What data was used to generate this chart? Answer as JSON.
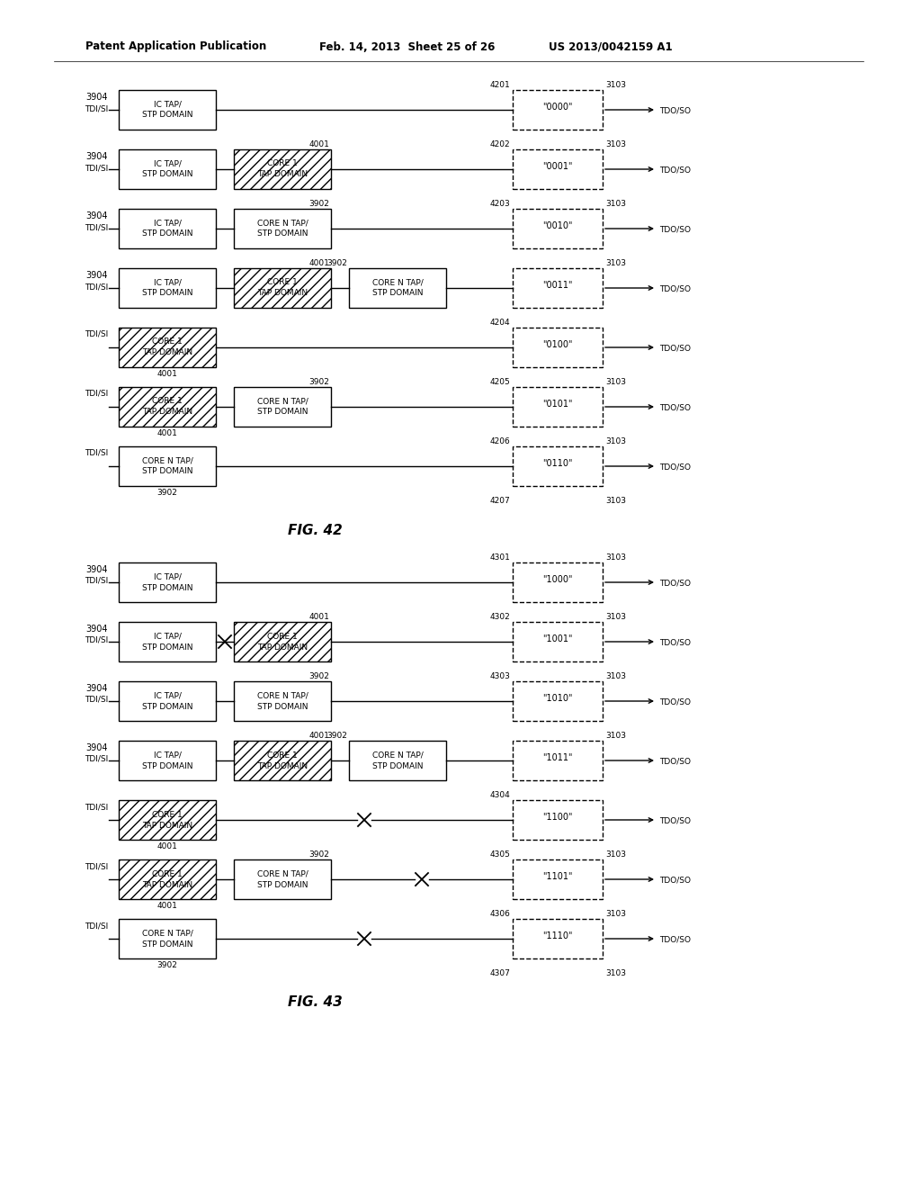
{
  "header_left": "Patent Application Publication",
  "header_mid": "Feb. 14, 2013  Sheet 25 of 26",
  "header_right": "US 2013/0042159 A1",
  "fig42_title": "FIG. 42",
  "fig43_title": "FIG. 43",
  "bg_color": "#ffffff",
  "fig42_rows": [
    {
      "num": "3904",
      "tdi": "TDI/SI",
      "b1": "IC TAP/\nSTP DOMAIN",
      "h1": false,
      "b2": null,
      "h2": false,
      "b3": null,
      "mn1": null,
      "mn2": null,
      "bn": null,
      "cnum": "4201",
      "code": "\"0000\"",
      "out": "3103",
      "cross_mid": false,
      "cross_end": false
    },
    {
      "num": "3904",
      "tdi": "TDI/SI",
      "b1": "IC TAP/\nSTP DOMAIN",
      "h1": false,
      "b2": "CORE 1\nTAP DOMAIN",
      "h2": true,
      "b3": null,
      "mn1": "4001",
      "mn2": null,
      "bn": null,
      "cnum": "4202",
      "code": "\"0001\"",
      "out": "3103",
      "cross_mid": false,
      "cross_end": false
    },
    {
      "num": "3904",
      "tdi": "TDI/SI",
      "b1": "IC TAP/\nSTP DOMAIN",
      "h1": false,
      "b2": "CORE N TAP/\nSTP DOMAIN",
      "h2": false,
      "b3": null,
      "mn1": "3902",
      "mn2": null,
      "bn": null,
      "cnum": "4203",
      "code": "\"0010\"",
      "out": "3103",
      "cross_mid": false,
      "cross_end": false
    },
    {
      "num": "3904",
      "tdi": "TDI/SI",
      "b1": "IC TAP/\nSTP DOMAIN",
      "h1": false,
      "b2": "CORE 1\nTAP DOMAIN",
      "h2": true,
      "b3": "CORE N TAP/\nSTP DOMAIN",
      "mn1": "4001",
      "mn2": "3902",
      "bn": null,
      "cnum": "",
      "code": "\"0011\"",
      "out": "3103",
      "cross_mid": false,
      "cross_end": false
    },
    {
      "num": null,
      "tdi": "TDI/SI",
      "b1": "CORE 1\nTAP DOMAIN",
      "h1": true,
      "b2": null,
      "h2": false,
      "b3": null,
      "mn1": null,
      "mn2": null,
      "bn": "4001",
      "cnum": "4204",
      "code": "\"0100\"",
      "out": null,
      "cross_mid": false,
      "cross_end": false
    },
    {
      "num": null,
      "tdi": "TDI/SI",
      "b1": "CORE 1\nTAP DOMAIN",
      "h1": true,
      "b2": "CORE N TAP/\nSTP DOMAIN",
      "h2": false,
      "b3": null,
      "mn1": "3902",
      "mn2": null,
      "bn": "4001",
      "cnum": "4205",
      "code": "\"0101\"",
      "out": "3103",
      "cross_mid": false,
      "cross_end": false
    },
    {
      "num": null,
      "tdi": "TDI/SI",
      "b1": "CORE N TAP/\nSTP DOMAIN",
      "h1": false,
      "b2": null,
      "h2": false,
      "b3": null,
      "mn1": null,
      "mn2": null,
      "bn": "3902",
      "cnum": "4206",
      "code": "\"0110\"",
      "out": "3103",
      "cross_mid": false,
      "cross_end": false
    }
  ],
  "fig42_extra": {
    "cnum": "4207",
    "out": "3103"
  },
  "fig43_rows": [
    {
      "num": "3904",
      "tdi": "TDI/SI",
      "b1": "IC TAP/\nSTP DOMAIN",
      "h1": false,
      "b2": null,
      "h2": false,
      "b3": null,
      "mn1": null,
      "mn2": null,
      "bn": null,
      "cnum": "4301",
      "code": "\"1000\"",
      "out": "3103",
      "cross_mid": false,
      "cross_end": false
    },
    {
      "num": "3904",
      "tdi": "TDI/SI",
      "b1": "IC TAP/\nSTP DOMAIN",
      "h1": false,
      "b2": "CORE 1\nTAP DOMAIN",
      "h2": true,
      "b3": null,
      "mn1": "4001",
      "mn2": null,
      "bn": null,
      "cnum": "4302",
      "code": "\"1001\"",
      "out": "3103",
      "cross_mid": true,
      "cross_end": false
    },
    {
      "num": "3904",
      "tdi": "TDI/SI",
      "b1": "IC TAP/\nSTP DOMAIN",
      "h1": false,
      "b2": "CORE N TAP/\nSTP DOMAIN",
      "h2": false,
      "b3": null,
      "mn1": "3902",
      "mn2": null,
      "bn": null,
      "cnum": "4303",
      "code": "\"1010\"",
      "out": "3103",
      "cross_mid": false,
      "cross_end": false
    },
    {
      "num": "3904",
      "tdi": "TDI/SI",
      "b1": "IC TAP/\nSTP DOMAIN",
      "h1": false,
      "b2": "CORE 1\nTAP DOMAIN",
      "h2": true,
      "b3": "CORE N TAP/\nSTP DOMAIN",
      "mn1": "4001",
      "mn2": "3902",
      "bn": null,
      "cnum": "",
      "code": "\"1011\"",
      "out": "3103",
      "cross_mid": false,
      "cross_end": false
    },
    {
      "num": null,
      "tdi": "TDI/SI",
      "b1": "CORE 1\nTAP DOMAIN",
      "h1": true,
      "b2": null,
      "h2": false,
      "b3": null,
      "mn1": null,
      "mn2": null,
      "bn": "4001",
      "cnum": "4304",
      "code": "\"1100\"",
      "out": null,
      "cross_mid": false,
      "cross_end": true
    },
    {
      "num": null,
      "tdi": "TDI/SI",
      "b1": "CORE 1\nTAP DOMAIN",
      "h1": true,
      "b2": "CORE N TAP/\nSTP DOMAIN",
      "h2": false,
      "b3": null,
      "mn1": "3902",
      "mn2": null,
      "bn": "4001",
      "cnum": "4305",
      "code": "\"1101\"",
      "out": "3103",
      "cross_mid": false,
      "cross_end": true
    },
    {
      "num": null,
      "tdi": "TDI/SI",
      "b1": "CORE N TAP/\nSTP DOMAIN",
      "h1": false,
      "b2": null,
      "h2": false,
      "b3": null,
      "mn1": null,
      "mn2": null,
      "bn": "3902",
      "cnum": "4306",
      "code": "\"1110\"",
      "out": "3103",
      "cross_mid": false,
      "cross_end": true
    }
  ],
  "fig43_extra": {
    "cnum": "4307",
    "out": "3103"
  }
}
